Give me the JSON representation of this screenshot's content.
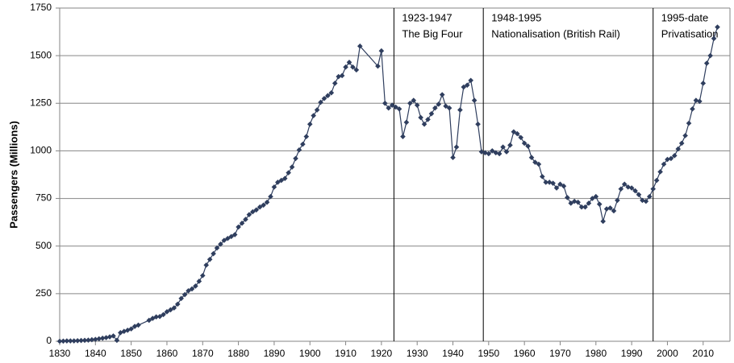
{
  "chart_data": {
    "type": "line",
    "y_label": "Passengers (Millions)",
    "xlim": [
      1830,
      2017.5
    ],
    "ylim": [
      0,
      1750
    ],
    "xticks": [
      1830,
      1840,
      1850,
      1860,
      1870,
      1880,
      1890,
      1900,
      1910,
      1920,
      1930,
      1940,
      1950,
      1960,
      1970,
      1980,
      1990,
      2000,
      2010
    ],
    "yticks": [
      0,
      250,
      500,
      750,
      1000,
      1250,
      1500,
      1750
    ],
    "grid": true,
    "annotations": [
      {
        "x": 1923.5,
        "lines": [
          "1923-1947",
          "The Big Four"
        ]
      },
      {
        "x": 1948.5,
        "lines": [
          "1948-1995",
          "Nationalisation (British Rail)"
        ]
      },
      {
        "x": 1996,
        "lines": [
          "1995-date",
          "Privatisation"
        ]
      }
    ],
    "series": [
      {
        "color": "#2f3e5e",
        "x": [
          1830,
          1831,
          1832,
          1833,
          1834,
          1835,
          1836,
          1837,
          1838,
          1839,
          1840,
          1841,
          1842,
          1843,
          1844,
          1845,
          1846,
          1847,
          1848,
          1849,
          1850,
          1851,
          1852,
          1855,
          1856,
          1857,
          1858,
          1859,
          1860,
          1861,
          1862,
          1863,
          1864,
          1865,
          1866,
          1867,
          1868,
          1869,
          1870,
          1871,
          1872,
          1873,
          1874,
          1875,
          1876,
          1877,
          1878,
          1879,
          1880,
          1881,
          1882,
          1883,
          1884,
          1885,
          1886,
          1887,
          1888,
          1889,
          1890,
          1891,
          1892,
          1893,
          1894,
          1895,
          1896,
          1897,
          1898,
          1899,
          1900,
          1901,
          1902,
          1903,
          1904,
          1905,
          1906,
          1907,
          1908,
          1909,
          1910,
          1911,
          1912,
          1913,
          1914,
          1919,
          1920,
          1921,
          1922,
          1923,
          1924,
          1925,
          1926,
          1927,
          1928,
          1929,
          1930,
          1931,
          1932,
          1933,
          1934,
          1935,
          1936,
          1937,
          1938,
          1939,
          1940,
          1941,
          1942,
          1943,
          1944,
          1945,
          1946,
          1947,
          1948,
          1949,
          1950,
          1951,
          1952,
          1953,
          1954,
          1955,
          1956,
          1957,
          1958,
          1959,
          1960,
          1961,
          1962,
          1963,
          1964,
          1965,
          1966,
          1967,
          1968,
          1969,
          1970,
          1971,
          1972,
          1973,
          1974,
          1975,
          1976,
          1977,
          1978,
          1979,
          1980,
          1981,
          1982,
          1983,
          1984,
          1985,
          1986,
          1987,
          1988,
          1989,
          1990,
          1991,
          1992,
          1993,
          1994,
          1995,
          1996,
          1997,
          1998,
          1999,
          2000,
          2001,
          2002,
          2003,
          2004,
          2005,
          2006,
          2007,
          2008,
          2009,
          2010,
          2011,
          2012,
          2013,
          2014
        ],
        "values": [
          0,
          1,
          2,
          2,
          2,
          3,
          4,
          5,
          6,
          8,
          10,
          13,
          16,
          19,
          23,
          28,
          5,
          45,
          52,
          58,
          65,
          78,
          85,
          110,
          120,
          128,
          130,
          140,
          155,
          165,
          175,
          195,
          225,
          245,
          265,
          275,
          290,
          315,
          345,
          400,
          430,
          460,
          490,
          510,
          530,
          540,
          550,
          560,
          600,
          620,
          640,
          665,
          680,
          690,
          705,
          715,
          730,
          760,
          810,
          835,
          845,
          855,
          885,
          915,
          960,
          1005,
          1035,
          1075,
          1140,
          1185,
          1215,
          1255,
          1275,
          1290,
          1305,
          1355,
          1390,
          1395,
          1440,
          1465,
          1440,
          1425,
          1550,
          1445,
          1525,
          1250,
          1225,
          1240,
          1230,
          1220,
          1075,
          1150,
          1250,
          1265,
          1240,
          1175,
          1140,
          1165,
          1195,
          1225,
          1245,
          1295,
          1235,
          1225,
          965,
          1020,
          1215,
          1335,
          1345,
          1370,
          1265,
          1140,
          995,
          990,
          985,
          1000,
          990,
          985,
          1020,
          995,
          1030,
          1100,
          1090,
          1070,
          1040,
          1025,
          965,
          940,
          930,
          865,
          835,
          835,
          830,
          805,
          825,
          815,
          755,
          725,
          735,
          730,
          705,
          705,
          725,
          750,
          760,
          720,
          630,
          695,
          700,
          685,
          740,
          800,
          825,
          810,
          805,
          790,
          770,
          740,
          735,
          760,
          800,
          845,
          890,
          930,
          955,
          960,
          975,
          1010,
          1040,
          1080,
          1145,
          1220,
          1265,
          1260,
          1355,
          1460,
          1500,
          1590,
          1650
        ]
      }
    ]
  }
}
